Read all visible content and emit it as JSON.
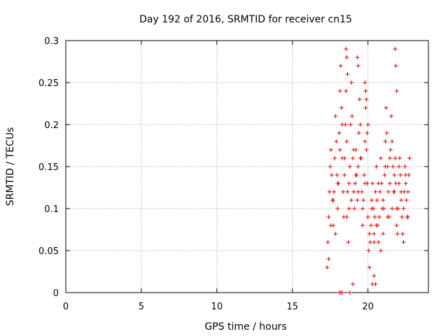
{
  "chart_data": {
    "type": "scatter",
    "title": "Day 192 of 2016, SRMTID for receiver cn15",
    "xlabel": "GPS time / hours",
    "ylabel": "SRMTID / TECUs",
    "xlim": [
      0,
      24
    ],
    "ylim": [
      0,
      0.3
    ],
    "xticks": [
      0,
      5,
      10,
      15,
      20
    ],
    "xtick_labels": [
      "0",
      "5",
      "10",
      "15",
      "20"
    ],
    "yticks": [
      0,
      0.05,
      0.1,
      0.15,
      0.2,
      0.25,
      0.3
    ],
    "ytick_labels": [
      "0",
      "0.05",
      "0.1",
      "0.15",
      "0.2",
      "0.25",
      "0.3"
    ],
    "grid": true,
    "marker": "+",
    "color": "#e00000",
    "series": [
      {
        "name": "cn15",
        "x": [
          17.3,
          17.35,
          17.4,
          17.45,
          17.5,
          17.55,
          17.6,
          17.65,
          17.7,
          17.75,
          17.8,
          17.85,
          17.9,
          17.95,
          18.0,
          18.05,
          18.1,
          18.15,
          18.2,
          18.25,
          18.3,
          18.35,
          18.4,
          18.45,
          18.5,
          18.55,
          18.6,
          18.65,
          18.7,
          18.75,
          18.8,
          18.85,
          18.9,
          18.95,
          19.0,
          19.05,
          19.1,
          19.15,
          19.2,
          19.25,
          19.3,
          19.35,
          19.4,
          19.45,
          19.5,
          19.55,
          19.6,
          19.65,
          19.7,
          19.75,
          19.8,
          19.85,
          19.9,
          19.95,
          20.0,
          20.05,
          20.1,
          20.15,
          20.2,
          20.25,
          20.3,
          20.35,
          20.4,
          20.45,
          20.5,
          20.55,
          20.6,
          20.65,
          20.7,
          20.75,
          20.8,
          20.85,
          20.9,
          20.95,
          21.0,
          21.05,
          21.1,
          21.15,
          21.2,
          21.25,
          21.3,
          21.35,
          21.4,
          21.45,
          21.5,
          21.55,
          21.6,
          21.65,
          21.7,
          21.75,
          21.8,
          21.85,
          21.9,
          21.95,
          22.0,
          22.05,
          22.1,
          22.15,
          22.2,
          22.25,
          22.3,
          22.35,
          22.4,
          22.45,
          22.5,
          22.55,
          22.6,
          22.65,
          22.7,
          22.75,
          17.4,
          17.55,
          17.7,
          17.85,
          18.0,
          18.15,
          18.3,
          18.45,
          18.6,
          18.75,
          18.9,
          19.05,
          19.2,
          19.35,
          19.5,
          19.65,
          19.8,
          19.95,
          20.1,
          20.25,
          20.4,
          20.55,
          20.7,
          20.85,
          21.0,
          21.15,
          21.3,
          21.45,
          21.6,
          21.75,
          21.9,
          22.05,
          22.2,
          22.35,
          22.5,
          22.65,
          18.55,
          18.6,
          18.65,
          19.3,
          19.35,
          19.8,
          19.85,
          19.9,
          20.0,
          21.8,
          21.85,
          21.9,
          18.1,
          18.2,
          18.3,
          18.8,
          19.0,
          20.3,
          20.4,
          20.5
        ],
        "y": [
          0.03,
          0.06,
          0.09,
          0.12,
          0.15,
          0.17,
          0.14,
          0.11,
          0.08,
          0.12,
          0.16,
          0.21,
          0.18,
          0.14,
          0.1,
          0.13,
          0.19,
          0.24,
          0.27,
          0.22,
          0.16,
          0.12,
          0.09,
          0.14,
          0.2,
          0.24,
          0.18,
          0.12,
          0.06,
          0.1,
          0.15,
          0.2,
          0.25,
          0.21,
          0.16,
          0.12,
          0.1,
          0.13,
          0.17,
          0.14,
          0.11,
          0.15,
          0.19,
          0.23,
          0.2,
          0.16,
          0.12,
          0.08,
          0.11,
          0.14,
          0.18,
          0.22,
          0.17,
          0.13,
          0.09,
          0.05,
          0.03,
          0.06,
          0.08,
          0.11,
          0.13,
          0.1,
          0.07,
          0.09,
          0.12,
          0.15,
          0.11,
          0.08,
          0.06,
          0.09,
          0.12,
          0.16,
          0.13,
          0.1,
          0.07,
          0.1,
          0.14,
          0.18,
          0.22,
          0.19,
          0.15,
          0.12,
          0.09,
          0.13,
          0.17,
          0.21,
          0.18,
          0.15,
          0.12,
          0.14,
          0.16,
          0.13,
          0.1,
          0.07,
          0.1,
          0.13,
          0.16,
          0.14,
          0.12,
          0.09,
          0.07,
          0.1,
          0.12,
          0.15,
          0.13,
          0.11,
          0.09,
          0.12,
          0.14,
          0.16,
          0.04,
          0.08,
          0.11,
          0.07,
          0.13,
          0.17,
          0.2,
          0.16,
          0.09,
          0.13,
          0.11,
          0.17,
          0.14,
          0.12,
          0.16,
          0.1,
          0.13,
          0.19,
          0.07,
          0.1,
          0.06,
          0.08,
          0.13,
          0.05,
          0.11,
          0.15,
          0.09,
          0.16,
          0.1,
          0.12,
          0.08,
          0.15,
          0.11,
          0.06,
          0.14,
          0.09,
          0.29,
          0.28,
          0.26,
          0.28,
          0.27,
          0.25,
          0.24,
          0.23,
          0.2,
          0.29,
          0.27,
          0.24,
          0.0,
          0.0,
          0.0,
          0.0,
          0.01,
          0.01,
          0.02,
          0.01
        ]
      }
    ]
  }
}
